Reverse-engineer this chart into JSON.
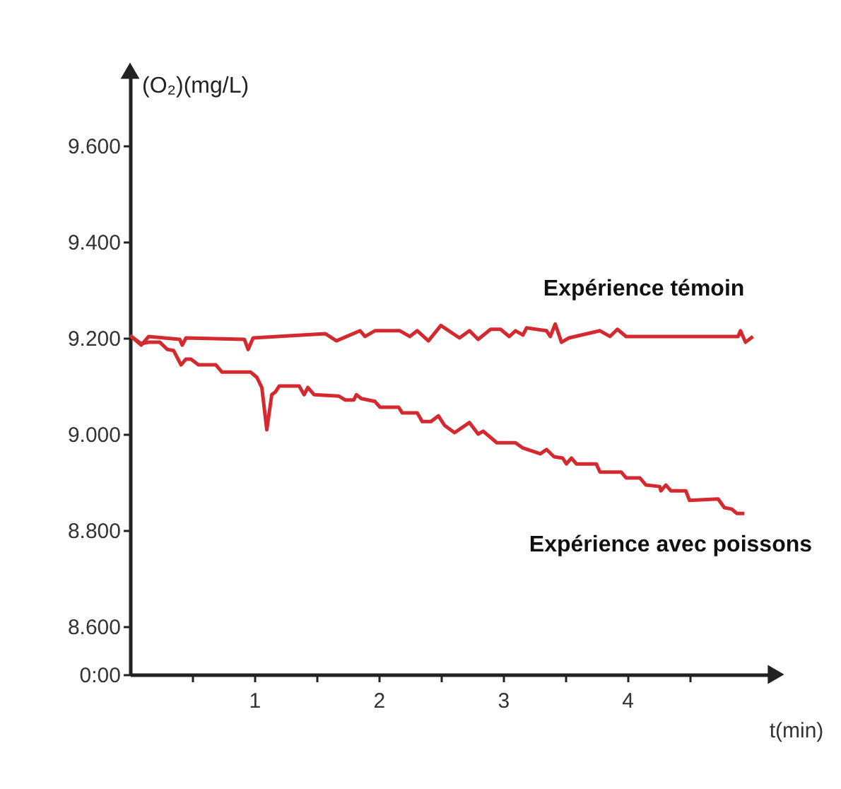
{
  "chart_data": {
    "type": "line",
    "xlabel": "t(min)",
    "ylabel": "(O₂)(mg/L)",
    "xlim": [
      0,
      5.15
    ],
    "ylim": [
      8.5,
      9.75
    ],
    "xticks": [
      {
        "value": 0.5,
        "label": null
      },
      1,
      {
        "value": 1.5,
        "label": null
      },
      2,
      {
        "value": 2.5,
        "label": null
      },
      3,
      {
        "value": 3.5,
        "label": null
      },
      4,
      {
        "value": 4.5,
        "label": null
      }
    ],
    "yticks": [
      {
        "value": 8.5,
        "label": "0:00"
      },
      {
        "value": 8.6,
        "label": "8.600"
      },
      {
        "value": 8.8,
        "label": "8.800"
      },
      {
        "value": 9.0,
        "label": "9.000"
      },
      {
        "value": 9.2,
        "label": "9.200"
      },
      {
        "value": 9.4,
        "label": "9.400"
      },
      {
        "value": 9.6,
        "label": "9.600"
      }
    ],
    "grid": false,
    "series": [
      {
        "name": "Expérience témoin",
        "color": "#d42a2f",
        "x": [
          0,
          0.09,
          0.15,
          0.4,
          0.42,
          0.45,
          0.92,
          0.95,
          0.99,
          1.57,
          1.66,
          1.85,
          1.89,
          1.97,
          2.17,
          2.25,
          2.31,
          2.4,
          2.5,
          2.65,
          2.73,
          2.8,
          2.9,
          2.98,
          3.05,
          3.1,
          3.16,
          3.19,
          3.35,
          3.38,
          3.42,
          3.47,
          3.53,
          3.78,
          3.86,
          3.92,
          3.99,
          4.89,
          4.91,
          4.95,
          5.01
        ],
        "values": [
          9.205,
          9.185,
          9.203,
          9.197,
          9.185,
          9.2,
          9.197,
          9.176,
          9.2,
          9.209,
          9.194,
          9.215,
          9.203,
          9.215,
          9.215,
          9.203,
          9.215,
          9.194,
          9.226,
          9.2,
          9.215,
          9.197,
          9.218,
          9.218,
          9.203,
          9.215,
          9.206,
          9.221,
          9.215,
          9.203,
          9.229,
          9.191,
          9.2,
          9.215,
          9.203,
          9.218,
          9.203,
          9.203,
          9.215,
          9.191,
          9.203
        ]
      },
      {
        "name": "Expérience avec poissons",
        "color": "#d42a2f",
        "x": [
          0,
          0.09,
          0.15,
          0.24,
          0.3,
          0.35,
          0.41,
          0.45,
          0.49,
          0.55,
          0.69,
          0.74,
          0.97,
          1.02,
          1.06,
          1.1,
          1.14,
          1.17,
          1.2,
          1.36,
          1.4,
          1.43,
          1.48,
          1.68,
          1.73,
          1.8,
          1.82,
          1.86,
          1.97,
          2.01,
          2.16,
          2.19,
          2.31,
          2.35,
          2.42,
          2.48,
          2.53,
          2.61,
          2.73,
          2.8,
          2.84,
          2.95,
          3.1,
          3.16,
          3.3,
          3.35,
          3.41,
          3.48,
          3.51,
          3.55,
          3.59,
          3.75,
          3.78,
          3.95,
          3.99,
          4.1,
          4.15,
          4.26,
          4.27,
          4.31,
          4.35,
          4.47,
          4.5,
          4.73,
          4.78,
          4.84,
          4.88,
          4.94
        ],
        "values": [
          9.205,
          9.188,
          9.191,
          9.191,
          9.176,
          9.174,
          9.144,
          9.156,
          9.156,
          9.144,
          9.144,
          9.129,
          9.129,
          9.118,
          9.097,
          9.009,
          9.082,
          9.088,
          9.1,
          9.1,
          9.082,
          9.097,
          9.082,
          9.079,
          9.071,
          9.071,
          9.082,
          9.074,
          9.068,
          9.056,
          9.056,
          9.044,
          9.044,
          9.026,
          9.026,
          9.038,
          9.018,
          9.003,
          9.024,
          9.0,
          9.006,
          8.982,
          8.982,
          8.971,
          8.959,
          8.968,
          8.953,
          8.95,
          8.938,
          8.95,
          8.938,
          8.938,
          8.921,
          8.921,
          8.909,
          8.909,
          8.894,
          8.891,
          8.882,
          8.894,
          8.882,
          8.882,
          8.862,
          8.865,
          8.847,
          8.844,
          8.835,
          8.835
        ]
      }
    ]
  }
}
